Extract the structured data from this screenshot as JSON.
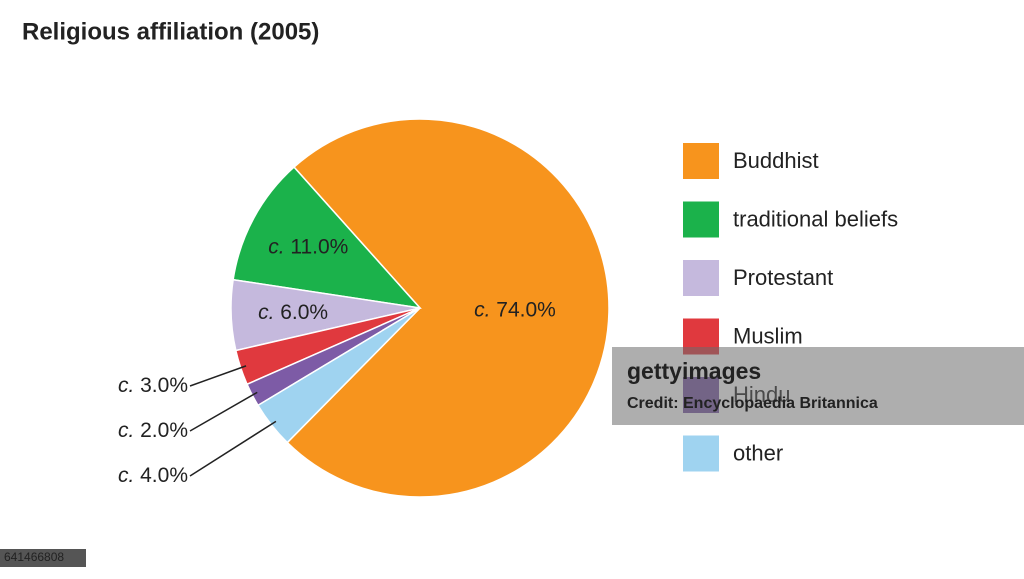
{
  "chart_data": {
    "type": "pie",
    "title": "Religious affiliation (2005)",
    "categories": [
      "Buddhist",
      "traditional beliefs",
      "Protestant",
      "Muslim",
      "Hindu",
      "other"
    ],
    "values": [
      74,
      11,
      6,
      3,
      2,
      4
    ],
    "value_labels": [
      "c. 74.0%",
      "c. 11.0%",
      "c. 6.0%",
      "c. 3.0%",
      "c. 2.0%",
      "c. 4.0%"
    ],
    "colors": [
      "#f7941d",
      "#1bb24b",
      "#c5b9dd",
      "#e0393e",
      "#7d5ba6",
      "#9fd3f0"
    ],
    "legend": "right"
  },
  "watermark": {
    "brand": "gettyimages",
    "credit": "Credit: Encyclopaedia Britannica",
    "id": "641466808"
  }
}
